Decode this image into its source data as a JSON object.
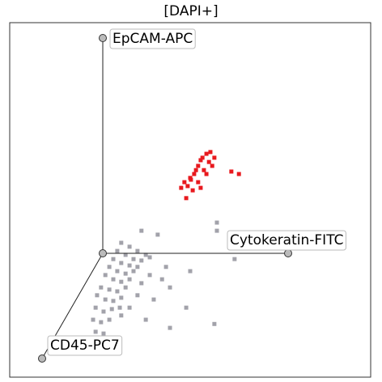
{
  "chart_data": {
    "type": "scatter",
    "title": "[DAPI+]",
    "axis_labels": [
      "EpCAM-APC",
      "Cytokeratin-FITC",
      "CD45-PC7"
    ],
    "xlim": [
      0,
      100
    ],
    "ylim": [
      0,
      100
    ],
    "series": [
      {
        "color": "#a2a2aa",
        "x": [
          30.9,
          33.2,
          35.4,
          37.7,
          38.8,
          29.8,
          32.1,
          34.3,
          36.5,
          28.7,
          30.9,
          33.2,
          35.4,
          27.6,
          29.8,
          32.1,
          34.3,
          26.5,
          28.7,
          30.9,
          33.2,
          25.3,
          27.6,
          29.8,
          32.1,
          24.2,
          26.5,
          28.7,
          30.9,
          23.8,
          26.0,
          28.3,
          30.5,
          23.1,
          25.3,
          27.6,
          23.8,
          26.0,
          24.2,
          30.9,
          33.2,
          36.5,
          38.8,
          42.2,
          44.4,
          39.9,
          37.7,
          48.9,
          56.7,
          62.3,
          57.4,
          57.4,
          41.0,
          36.5,
          50.0,
          44.4,
          43.3,
          35.4
        ],
        "y": [
          37.9,
          36.8,
          35.6,
          34.5,
          33.8,
          35.6,
          34.5,
          33.3,
          32.9,
          33.3,
          32.2,
          31.5,
          31.1,
          31.1,
          29.9,
          29.2,
          29.9,
          28.8,
          27.6,
          26.9,
          27.6,
          25.3,
          24.7,
          24.2,
          25.3,
          23.1,
          21.9,
          21.5,
          22.4,
          19.6,
          18.5,
          19.2,
          19.6,
          16.2,
          15.5,
          16.2,
          12.8,
          12.3,
          10.5,
          17.4,
          19.6,
          26.5,
          28.8,
          27.6,
          25.3,
          21.9,
          16.2,
          19.6,
          15.0,
          33.3,
          43.6,
          41.3,
          40.2,
          41.3,
          29.9,
          13.9,
          31.1,
          23.1
        ]
      },
      {
        "color": "#e8191e",
        "x": [
          53.4,
          54.5,
          55.2,
          52.2,
          53.8,
          55.6,
          52.9,
          56.1,
          51.1,
          50.0,
          48.4,
          49.3,
          52.2,
          50.7,
          48.9,
          47.5,
          61.4,
          63.5,
          54.5,
          56.7,
          51.6,
          50.2,
          52.9
        ],
        "y": [
          61.9,
          63.0,
          60.7,
          59.6,
          58.4,
          63.5,
          61.2,
          59.6,
          57.3,
          56.2,
          55.0,
          53.9,
          55.0,
          52.7,
          50.5,
          53.4,
          58.0,
          57.3,
          57.3,
          61.9,
          58.4,
          55.7,
          53.4
        ]
      }
    ]
  }
}
